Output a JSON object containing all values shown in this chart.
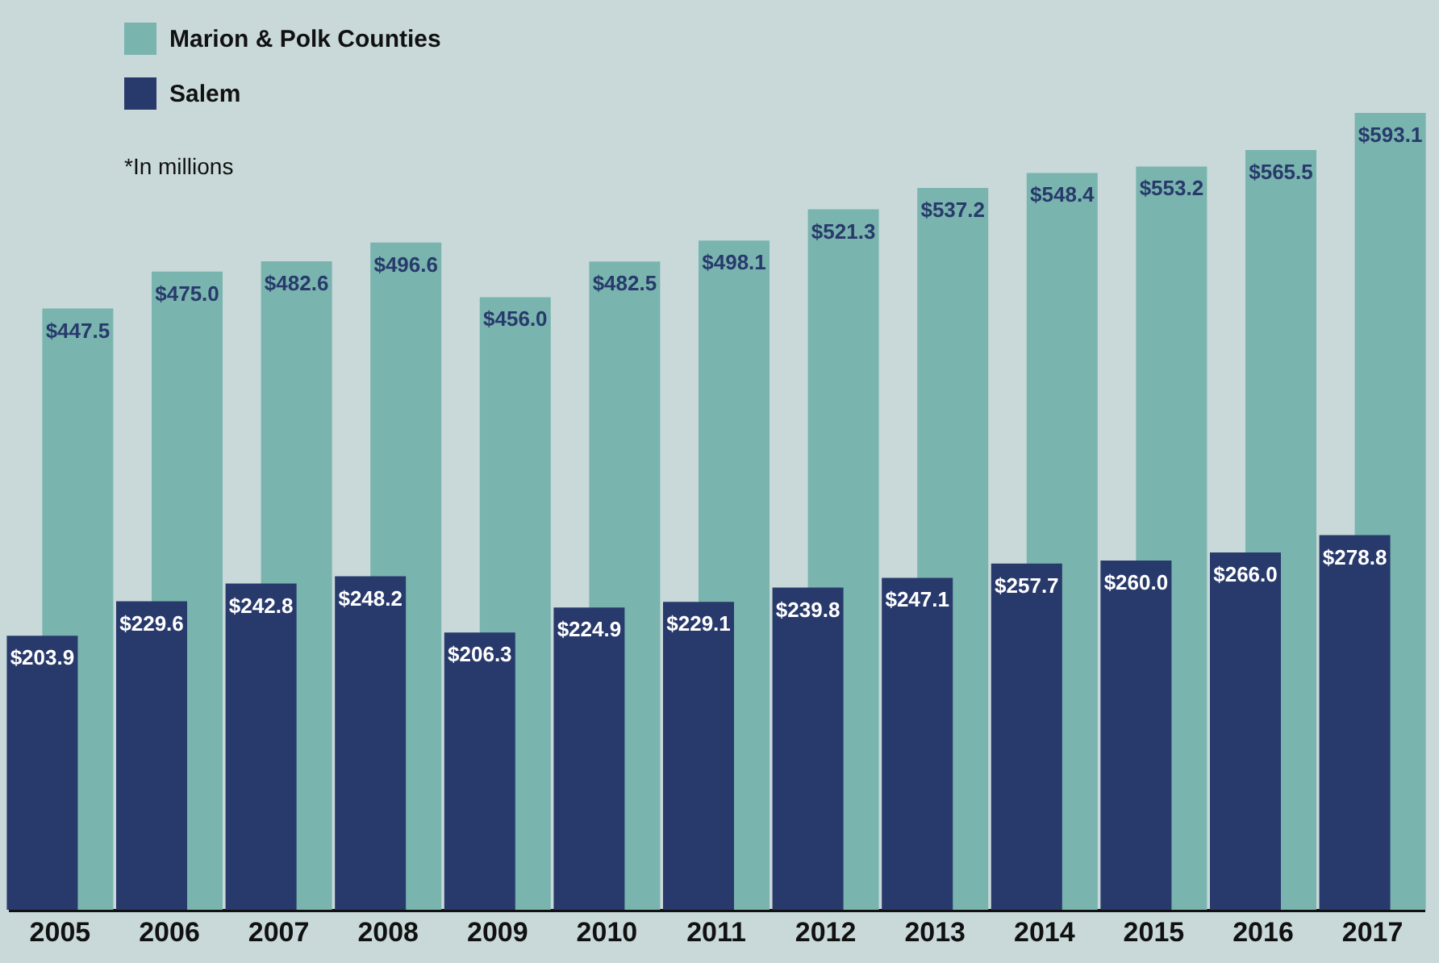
{
  "chart_data": {
    "type": "bar",
    "categories": [
      "2005",
      "2006",
      "2007",
      "2008",
      "2009",
      "2010",
      "2011",
      "2012",
      "2013",
      "2014",
      "2015",
      "2016",
      "2017"
    ],
    "series": [
      {
        "name": "Marion & Polk Counties",
        "color": "#79b4ae",
        "values": [
          447.5,
          475.0,
          482.6,
          496.6,
          456.0,
          482.5,
          498.1,
          521.3,
          537.2,
          548.4,
          553.2,
          565.5,
          593.1
        ],
        "value_labels": [
          "$447.5",
          "$475.0",
          "$482.6",
          "$496.6",
          "$456.0",
          "$482.5",
          "$498.1",
          "$521.3",
          "$537.2",
          "$548.4",
          "$553.2",
          "$565.5",
          "$593.1"
        ]
      },
      {
        "name": "Salem",
        "color": "#283a6c",
        "values": [
          203.9,
          229.6,
          242.8,
          248.2,
          206.3,
          224.9,
          229.1,
          239.8,
          247.1,
          257.7,
          260.0,
          266.0,
          278.8
        ],
        "value_labels": [
          "$203.9",
          "$229.6",
          "$242.8",
          "$248.2",
          "$206.3",
          "$224.9",
          "$229.1",
          "$239.8",
          "$247.1",
          "$257.7",
          "$260.0",
          "$266.0",
          "$278.8"
        ]
      }
    ],
    "annotations": [
      "*In millions"
    ],
    "legend": "top left",
    "grid": false
  }
}
